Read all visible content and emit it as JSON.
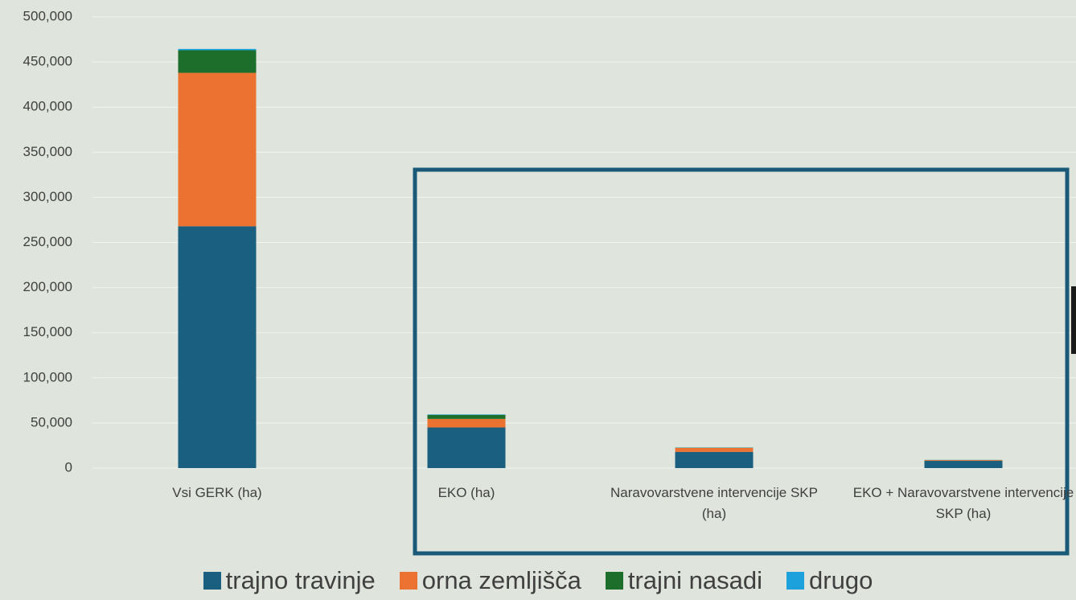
{
  "chart_data": {
    "type": "stacked_bar",
    "categories": [
      "Vsi GERK (ha)",
      "EKO (ha)",
      "Naravovarstvene intervencije SKP (ha)",
      "EKO + Naravovarstvene intervencije SKP (ha)"
    ],
    "series": [
      {
        "name": "trajno travinje",
        "color": "#1a5e80",
        "values": [
          268000,
          45000,
          18000,
          8000
        ]
      },
      {
        "name": "orna zemljišča",
        "color": "#ec7232",
        "values": [
          170000,
          9500,
          4300,
          800
        ]
      },
      {
        "name": "trajni nasadi",
        "color": "#1c6e2a",
        "values": [
          25000,
          4500,
          300,
          200
        ]
      },
      {
        "name": "drugo",
        "color": "#1da1dc",
        "values": [
          1500,
          500,
          200,
          100
        ]
      }
    ],
    "ylim": [
      0,
      500000
    ],
    "yticks": [
      0,
      {
        "value": 50000,
        "label": "50,000"
      },
      {
        "value": 100000,
        "label": "100,000"
      },
      {
        "value": 150000,
        "label": "150,000"
      },
      {
        "value": 200000,
        "label": "200,000"
      },
      {
        "value": 250000,
        "label": "250,000"
      },
      {
        "value": 300000,
        "label": "300,000"
      },
      {
        "value": 350000,
        "label": "350,000"
      },
      {
        "value": 400000,
        "label": "400,000"
      },
      {
        "value": 450000,
        "label": "450,000"
      },
      {
        "value": 500000,
        "label": "500,000"
      }
    ],
    "grid": true
  }
}
